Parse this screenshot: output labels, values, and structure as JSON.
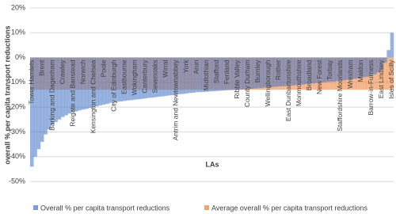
{
  "chart_data": {
    "type": "bar",
    "x_label": "LAs",
    "y_label": "overall % per capita transport reductions",
    "categories": [
      "Tower Hamlets",
      null,
      null,
      "Brent",
      null,
      null,
      "Barking and Dagenham",
      null,
      null,
      "Crawley",
      null,
      null,
      "Reigate and Banstead",
      null,
      null,
      "Norwich",
      null,
      null,
      "Kensington and Chelsea",
      null,
      null,
      "Poole",
      null,
      null,
      "City of Edinburgh",
      null,
      null,
      "Eastbourne",
      null,
      null,
      "Wokingham",
      null,
      null,
      "Canterbury",
      null,
      null,
      "Sevenoaks",
      null,
      null,
      "Wirral",
      null,
      null,
      "Antrim and Newtownabbey",
      null,
      null,
      "York",
      null,
      null,
      "Arun",
      null,
      null,
      "Midlothian",
      null,
      null,
      "Stafford",
      null,
      null,
      "Fenland",
      null,
      null,
      "Ribble Valley",
      null,
      null,
      "County Durham",
      null,
      null,
      "Burnley",
      null,
      null,
      "Wellingborough",
      null,
      null,
      "Rother",
      null,
      null,
      "East Dunbartonshire",
      null,
      null,
      "Monmouthshire",
      null,
      null,
      "Broadland",
      null,
      null,
      "New Forest",
      null,
      null,
      "Torbay",
      null,
      null,
      "Staffordshire Moorlands",
      null,
      null,
      "Wrexham",
      null,
      null,
      "Maldon",
      null,
      null,
      "Barrow-in-Furness",
      null,
      null,
      "East Lindsey",
      null,
      null,
      "Isles of Scilly"
    ],
    "series": [
      {
        "name": "Average overall % per capita transport reductions",
        "color": "#ed7d31",
        "values": [
          -13,
          -13,
          -13,
          -13,
          -13,
          -13,
          -13,
          -13,
          -13,
          -13,
          -13,
          -13,
          -13,
          -13,
          -13,
          -13,
          -13,
          -13,
          -13,
          -13,
          -13,
          -13,
          -13,
          -13,
          -13,
          -13,
          -13,
          -13,
          -13,
          -13,
          -13,
          -13,
          -13,
          -13,
          -13,
          -13,
          -13,
          -13,
          -13,
          -13,
          -13,
          -13,
          -13,
          -13,
          -13,
          -13,
          -13,
          -13,
          -13,
          -13,
          -13,
          -13,
          -13,
          -13,
          -13,
          -13,
          -13,
          -13,
          -13,
          -13,
          -13,
          -13,
          -13,
          -13,
          -13,
          -13,
          -13,
          -13,
          -13,
          -13,
          -13,
          -13,
          -13,
          -13,
          -13,
          -13,
          -13,
          -13,
          -13,
          -13,
          -13,
          -13,
          -13,
          -13,
          -13,
          -13,
          -13,
          -13,
          -13,
          -13,
          -13,
          -13,
          -13,
          -13,
          -13,
          -13,
          -13,
          -13,
          -13,
          -13,
          -13,
          -13,
          -13,
          -13,
          -13,
          -13
        ]
      },
      {
        "name": "Overall % per capita transport reductions",
        "color": "#4472c4",
        "values": [
          -44,
          -40,
          -37,
          -34,
          -31,
          -29,
          -27,
          -26,
          -25,
          -24,
          -23.3,
          -22.6,
          -22,
          -21.7,
          -21.3,
          -21,
          -20.7,
          -20.3,
          -20,
          -19.7,
          -19.3,
          -19,
          -18.7,
          -18.3,
          -18,
          -17.8,
          -17.7,
          -17.5,
          -17.3,
          -17.2,
          -17,
          -16.8,
          -16.7,
          -16.5,
          -16.3,
          -16.2,
          -16,
          -15.8,
          -15.7,
          -15.5,
          -15.3,
          -15.2,
          -15,
          -14.8,
          -14.7,
          -14.5,
          -14.3,
          -14.2,
          -14,
          -13.9,
          -13.9,
          -13.8,
          -13.7,
          -13.6,
          -13.5,
          -13.4,
          -13.3,
          -13.2,
          -13.1,
          -13.1,
          -13,
          -12.9,
          -12.8,
          -12.7,
          -12.6,
          -12.5,
          -12.4,
          -12.3,
          -12.1,
          -12,
          -11.9,
          -11.8,
          -11.7,
          -11.6,
          -11.5,
          -11.4,
          -11.3,
          -11.1,
          -11,
          -10.9,
          -10.7,
          -10.6,
          -10.5,
          -10.3,
          -10.2,
          -10.1,
          -9.9,
          -9.8,
          -9.7,
          -9.5,
          -9.4,
          -9.2,
          -9,
          -8.8,
          -8.6,
          -8.4,
          -8.2,
          -7.9,
          -7.7,
          -7.4,
          -6.8,
          -6,
          -5,
          -2,
          3,
          10
        ]
      }
    ],
    "legend_order": [
      1,
      0
    ],
    "ylim": [
      -50,
      20
    ],
    "yticks": [
      {
        "value": -50,
        "label": "-50%"
      },
      {
        "value": -40,
        "label": "-40%"
      },
      {
        "value": -30,
        "label": "-30%"
      },
      {
        "value": -20,
        "label": "-20%"
      },
      {
        "value": -10,
        "label": "-10%"
      },
      {
        "value": 0,
        "label": "0%"
      },
      {
        "value": 10,
        "label": "10%"
      },
      {
        "value": 20,
        "label": "20%"
      }
    ],
    "grid": true
  }
}
